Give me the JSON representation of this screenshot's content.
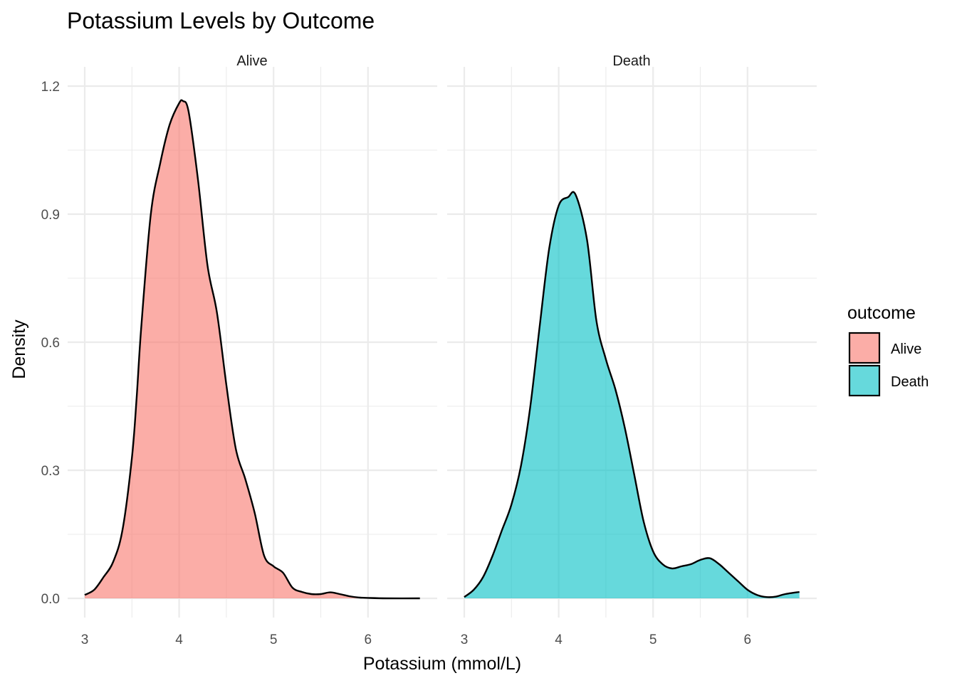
{
  "chart_data": {
    "type": "area",
    "title": "Potassium Levels by Outcome",
    "xlabel": "Potassium (mmol/L)",
    "ylabel": "Density",
    "xlim": [
      3.0,
      6.55
    ],
    "ylim": [
      0,
      1.2
    ],
    "x_ticks": [
      "3",
      "4",
      "5",
      "6"
    ],
    "y_ticks": [
      "0.0",
      "0.3",
      "0.6",
      "0.9",
      "1.2"
    ],
    "grid": true,
    "legend": {
      "title": "outcome",
      "position": "right"
    },
    "series": [
      {
        "name": "Alive",
        "facet": "Alive",
        "color": "#F8766D",
        "x": [
          3.0,
          3.1,
          3.2,
          3.3,
          3.4,
          3.5,
          3.55,
          3.6,
          3.7,
          3.8,
          3.9,
          4.0,
          4.04,
          4.1,
          4.2,
          4.3,
          4.4,
          4.5,
          4.6,
          4.7,
          4.8,
          4.9,
          5.0,
          5.1,
          5.2,
          5.3,
          5.4,
          5.5,
          5.6,
          5.7,
          5.8,
          5.9,
          6.0,
          6.2,
          6.55
        ],
        "y": [
          0.008,
          0.02,
          0.05,
          0.085,
          0.16,
          0.33,
          0.47,
          0.64,
          0.9,
          1.02,
          1.11,
          1.16,
          1.165,
          1.14,
          0.98,
          0.78,
          0.67,
          0.5,
          0.35,
          0.28,
          0.2,
          0.1,
          0.075,
          0.06,
          0.025,
          0.015,
          0.01,
          0.01,
          0.014,
          0.01,
          0.005,
          0.002,
          0.001,
          0.0,
          0.0
        ]
      },
      {
        "name": "Death",
        "facet": "Death",
        "color": "#00BFC4",
        "x": [
          3.0,
          3.1,
          3.2,
          3.3,
          3.4,
          3.5,
          3.6,
          3.7,
          3.8,
          3.9,
          4.0,
          4.1,
          4.18,
          4.3,
          4.4,
          4.5,
          4.6,
          4.7,
          4.8,
          4.9,
          5.0,
          5.1,
          5.2,
          5.3,
          5.4,
          5.5,
          5.6,
          5.7,
          5.8,
          5.9,
          6.0,
          6.1,
          6.2,
          6.3,
          6.4,
          6.55
        ],
        "y": [
          0.003,
          0.02,
          0.05,
          0.1,
          0.16,
          0.22,
          0.31,
          0.45,
          0.64,
          0.82,
          0.92,
          0.94,
          0.945,
          0.84,
          0.65,
          0.56,
          0.49,
          0.4,
          0.29,
          0.18,
          0.11,
          0.08,
          0.07,
          0.075,
          0.08,
          0.09,
          0.094,
          0.08,
          0.06,
          0.04,
          0.02,
          0.008,
          0.003,
          0.004,
          0.01,
          0.015
        ]
      }
    ]
  }
}
